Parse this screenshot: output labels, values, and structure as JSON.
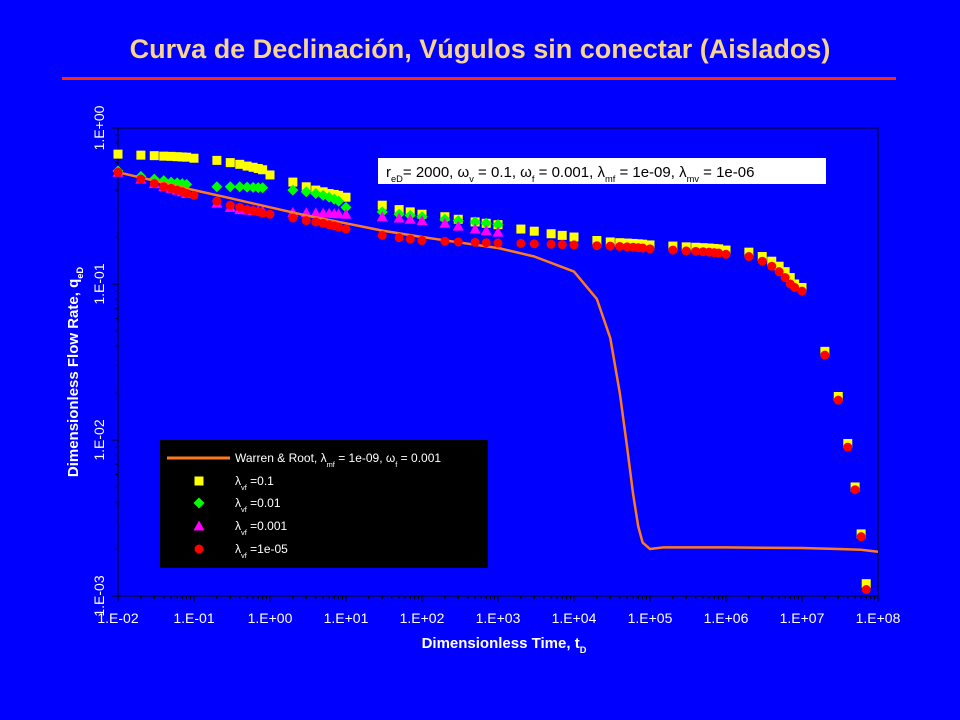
{
  "slide": {
    "title": "Curva de Declinación, Vúgulos sin conectar (Aislados)",
    "background_color": "#0000ff",
    "title_color": "#f7d48f",
    "rule_color": "#ff2a00"
  },
  "chart_data": {
    "type": "scatter",
    "xscale": "log",
    "yscale": "log",
    "xlim": [
      0.01,
      100000000
    ],
    "ylim": [
      0.001,
      1
    ],
    "xlabel": "Dimensionless Time, t",
    "xlabel_sub": "D",
    "ylabel": "Dimensionless Flow Rate, q",
    "ylabel_sub": "eD",
    "x_ticks": [
      0.01,
      0.1,
      1,
      10,
      100,
      1000,
      10000,
      100000,
      1000000,
      10000000,
      100000000
    ],
    "x_tick_labels": [
      "1.E-02",
      "1.E-01",
      "1.E+00",
      "1.E+01",
      "1.E+02",
      "1.E+03",
      "1.E+04",
      "1.E+05",
      "1.E+06",
      "1.E+07",
      "1.E+08"
    ],
    "y_ticks": [
      0.001,
      0.01,
      0.1,
      1
    ],
    "y_tick_labels": [
      "1.E-03",
      "1.E-02",
      "1.E-01",
      "1.E+00"
    ],
    "grid": false,
    "plot_background": "#0000ff",
    "annotation": {
      "text": "r",
      "sub": "eD",
      "text2": "= 2000, ω",
      "sub2": "v",
      "text3": " = 0.1, ω",
      "sub3": "f",
      "text4": " = 0.001, λ",
      "sub4": "mf",
      "text5": " = 1e-09, λ",
      "sub5": "mv",
      "text6": " = 1e-06",
      "position": "top-right"
    },
    "legend": {
      "position": "bottom-left",
      "entries": [
        {
          "main": "Warren & Root, λ",
          "sub": "mf",
          "tail": " = 1e-09, ω",
          "sub2": "f",
          "tail2": " = 0.001"
        },
        {
          "main": "λ",
          "sub": "vf",
          "tail": " =0.1",
          "sub2": "",
          "tail2": ""
        },
        {
          "main": "λ",
          "sub": "vf",
          "tail": " =0.01",
          "sub2": "",
          "tail2": ""
        },
        {
          "main": "λ",
          "sub": "vf",
          "tail": " =0.001",
          "sub2": "",
          "tail2": ""
        },
        {
          "main": "λ",
          "sub": "vf",
          "tail": " =1e-05",
          "sub2": "",
          "tail2": ""
        }
      ]
    },
    "series": [
      {
        "kind": "line",
        "color": "#ff7a1e",
        "x": [
          0.01,
          0.03,
          0.1,
          0.3,
          1,
          3,
          10,
          30,
          100,
          300,
          1000,
          3000,
          10000,
          20000,
          30000,
          40000,
          50000,
          60000,
          70000,
          80000,
          100000,
          150000,
          300000,
          1000000,
          3000000,
          10000000,
          30000000,
          60000000,
          100000000
        ],
        "y": [
          0.52,
          0.46,
          0.4,
          0.355,
          0.31,
          0.275,
          0.245,
          0.22,
          0.2,
          0.185,
          0.17,
          0.15,
          0.12,
          0.08,
          0.045,
          0.02,
          0.009,
          0.0045,
          0.0028,
          0.0022,
          0.002,
          0.00205,
          0.00205,
          0.00205,
          0.00204,
          0.00203,
          0.002,
          0.00198,
          0.00192
        ]
      },
      {
        "kind": "square",
        "color": "#ffff00",
        "x": [
          0.01,
          0.02,
          0.03,
          0.04,
          0.05,
          0.06,
          0.07,
          0.08,
          0.1,
          0.2,
          0.3,
          0.4,
          0.5,
          0.6,
          0.7,
          0.8,
          1,
          2,
          3,
          4,
          5,
          6,
          7,
          8,
          10,
          30,
          50,
          70,
          100,
          200,
          300,
          500,
          700,
          1000,
          2000,
          3000,
          5000,
          7000,
          10000,
          20000,
          30000,
          40000,
          50000,
          60000,
          70000,
          80000,
          100000,
          200000,
          300000,
          400000,
          500000,
          600000,
          700000,
          800000,
          1000000,
          2000000,
          3000000,
          4000000,
          5000000,
          6000000,
          7000000,
          8000000,
          10000000,
          20000000,
          30000000,
          40000000,
          50000000,
          60000000,
          70000000
        ],
        "y": [
          0.68,
          0.67,
          0.665,
          0.66,
          0.658,
          0.655,
          0.652,
          0.65,
          0.64,
          0.62,
          0.6,
          0.585,
          0.57,
          0.56,
          0.55,
          0.54,
          0.5,
          0.45,
          0.42,
          0.4,
          0.39,
          0.38,
          0.375,
          0.37,
          0.36,
          0.32,
          0.3,
          0.29,
          0.28,
          0.27,
          0.26,
          0.25,
          0.245,
          0.24,
          0.225,
          0.218,
          0.21,
          0.205,
          0.2,
          0.19,
          0.186,
          0.184,
          0.183,
          0.182,
          0.181,
          0.18,
          0.178,
          0.175,
          0.173,
          0.172,
          0.171,
          0.17,
          0.169,
          0.168,
          0.165,
          0.16,
          0.15,
          0.14,
          0.13,
          0.12,
          0.11,
          0.1,
          0.095,
          0.037,
          0.019,
          0.0095,
          0.005,
          0.0025,
          0.0012
        ]
      },
      {
        "kind": "diamond",
        "color": "#00ff00",
        "x": [
          0.01,
          0.02,
          0.03,
          0.04,
          0.05,
          0.06,
          0.07,
          0.08,
          0.2,
          0.3,
          0.4,
          0.5,
          0.6,
          0.7,
          0.8,
          2,
          3,
          4,
          5,
          6,
          7,
          8,
          10,
          30,
          50,
          70,
          100,
          200,
          300,
          500,
          700,
          1000
        ],
        "y": [
          0.53,
          0.49,
          0.47,
          0.46,
          0.45,
          0.445,
          0.44,
          0.435,
          0.42,
          0.42,
          0.42,
          0.418,
          0.416,
          0.415,
          0.414,
          0.4,
          0.39,
          0.38,
          0.37,
          0.36,
          0.35,
          0.34,
          0.31,
          0.29,
          0.28,
          0.275,
          0.27,
          0.26,
          0.255,
          0.25,
          0.245,
          0.24
        ]
      },
      {
        "kind": "triangle",
        "color": "#ff00ff",
        "x": [
          0.01,
          0.02,
          0.03,
          0.04,
          0.05,
          0.06,
          0.07,
          0.08,
          0.2,
          0.3,
          0.4,
          0.5,
          0.6,
          0.7,
          0.8,
          2,
          3,
          4,
          5,
          6,
          7,
          8,
          10,
          30,
          50,
          70,
          100,
          200,
          300,
          500,
          700,
          1000
        ],
        "y": [
          0.52,
          0.47,
          0.44,
          0.42,
          0.41,
          0.4,
          0.39,
          0.38,
          0.33,
          0.31,
          0.3,
          0.298,
          0.296,
          0.295,
          0.294,
          0.288,
          0.287,
          0.286,
          0.285,
          0.284,
          0.283,
          0.282,
          0.28,
          0.27,
          0.265,
          0.26,
          0.255,
          0.245,
          0.235,
          0.225,
          0.22,
          0.215
        ]
      },
      {
        "kind": "circle",
        "color": "#ff0000",
        "x": [
          0.01,
          0.02,
          0.03,
          0.04,
          0.05,
          0.06,
          0.07,
          0.08,
          0.1,
          0.2,
          0.3,
          0.4,
          0.5,
          0.6,
          0.7,
          0.8,
          1,
          2,
          3,
          4,
          5,
          6,
          7,
          8,
          10,
          30,
          50,
          70,
          100,
          200,
          300,
          500,
          700,
          1000,
          2000,
          3000,
          5000,
          7000,
          10000,
          20000,
          30000,
          40000,
          50000,
          60000,
          70000,
          80000,
          100000,
          200000,
          300000,
          400000,
          500000,
          600000,
          700000,
          800000,
          1000000,
          2000000,
          3000000,
          4000000,
          5000000,
          6000000,
          7000000,
          8000000,
          10000000,
          20000000,
          30000000,
          40000000,
          50000000,
          60000000,
          70000000
        ],
        "y": [
          0.52,
          0.47,
          0.44,
          0.42,
          0.41,
          0.4,
          0.39,
          0.38,
          0.37,
          0.34,
          0.32,
          0.31,
          0.3,
          0.295,
          0.29,
          0.285,
          0.28,
          0.265,
          0.255,
          0.25,
          0.245,
          0.24,
          0.236,
          0.232,
          0.225,
          0.205,
          0.198,
          0.194,
          0.19,
          0.188,
          0.186,
          0.185,
          0.184,
          0.183,
          0.182,
          0.181,
          0.18,
          0.179,
          0.178,
          0.176,
          0.175,
          0.174,
          0.173,
          0.172,
          0.171,
          0.17,
          0.168,
          0.165,
          0.163,
          0.162,
          0.161,
          0.16,
          0.159,
          0.158,
          0.155,
          0.15,
          0.14,
          0.13,
          0.12,
          0.11,
          0.1,
          0.095,
          0.09,
          0.035,
          0.018,
          0.009,
          0.0048,
          0.0024,
          0.0011
        ]
      }
    ]
  }
}
